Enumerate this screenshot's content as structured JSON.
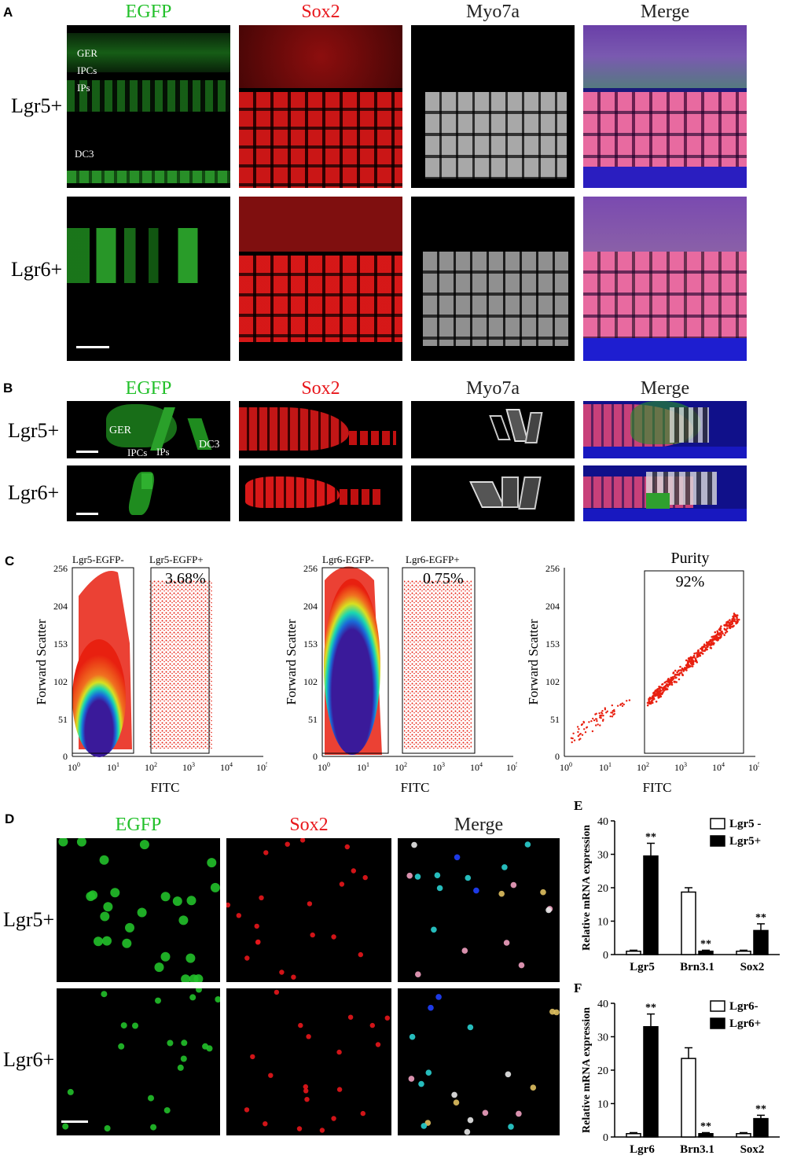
{
  "panelA": {
    "letter": "A",
    "columns": [
      "EGFP",
      "Sox2",
      "Myo7a",
      "Merge"
    ],
    "rows": [
      "Lgr5+",
      "Lgr6+"
    ],
    "labels": [
      "GER",
      "IPCs",
      "IPs",
      "DC3"
    ]
  },
  "panelB": {
    "letter": "B",
    "columns": [
      "EGFP",
      "Sox2",
      "Myo7a",
      "Merge"
    ],
    "rows": [
      "Lgr5+",
      "Lgr6+"
    ],
    "labels": [
      "GER",
      "IPCs",
      "IPs",
      "DC3"
    ]
  },
  "panelC": {
    "letter": "C",
    "plots": [
      {
        "gate_left": "Lgr5-EGFP-",
        "gate_right": "Lgr5-EGFP+",
        "percent": "3.68%"
      },
      {
        "gate_left": "Lgr6-EGFP-",
        "gate_right": "Lgr6-EGFP+",
        "percent": "0.75%"
      },
      {
        "title": "Purity",
        "percent": "92%"
      }
    ],
    "ylabel": "Forward Scatter",
    "xlabel": "FITC",
    "yticks": [
      "0",
      "51",
      "102",
      "153",
      "204",
      "256"
    ]
  },
  "panelD": {
    "letter": "D",
    "columns": [
      "EGFP",
      "Sox2",
      "Merge"
    ],
    "rows": [
      "Lgr5+",
      "Lgr6+"
    ]
  },
  "colors": {
    "green": "#22c02a",
    "red": "#e8161b",
    "gray": "#222222"
  },
  "chart_data": [
    {
      "panel": "E",
      "type": "bar",
      "ylabel": "Relative mRNA expression",
      "categories": [
        "Lgr5",
        "Brn3.1",
        "Sox2"
      ],
      "ylim": [
        0,
        40
      ],
      "yticks": [
        "0",
        "10",
        "20",
        "30",
        "40"
      ],
      "series": [
        {
          "name": "Lgr5 -",
          "values": [
            1,
            18.7,
            1
          ],
          "errors": [
            0.3,
            1.3,
            0.3
          ]
        },
        {
          "name": "Lgr5+",
          "values": [
            29.5,
            1,
            7.2
          ],
          "errors": [
            3.8,
            0.3,
            2
          ]
        }
      ],
      "significance": [
        {
          "label": "**"
        },
        {
          "label": "**"
        },
        {
          "label": "**"
        }
      ]
    },
    {
      "panel": "F",
      "type": "bar",
      "ylabel": "Relative mRNA expression",
      "categories": [
        "Lgr6",
        "Brn3.1",
        "Sox2"
      ],
      "ylim": [
        0,
        40
      ],
      "yticks": [
        "0",
        "10",
        "20",
        "30",
        "40"
      ],
      "series": [
        {
          "name": "Lgr6-",
          "values": [
            1,
            23.5,
            1
          ],
          "errors": [
            0.3,
            3.2,
            0.3
          ]
        },
        {
          "name": "Lgr6+",
          "values": [
            33,
            1,
            5.5
          ],
          "errors": [
            3.8,
            0.3,
            1
          ]
        }
      ],
      "significance": [
        {
          "label": "**"
        },
        {
          "label": "**"
        },
        {
          "label": "**"
        }
      ]
    }
  ]
}
